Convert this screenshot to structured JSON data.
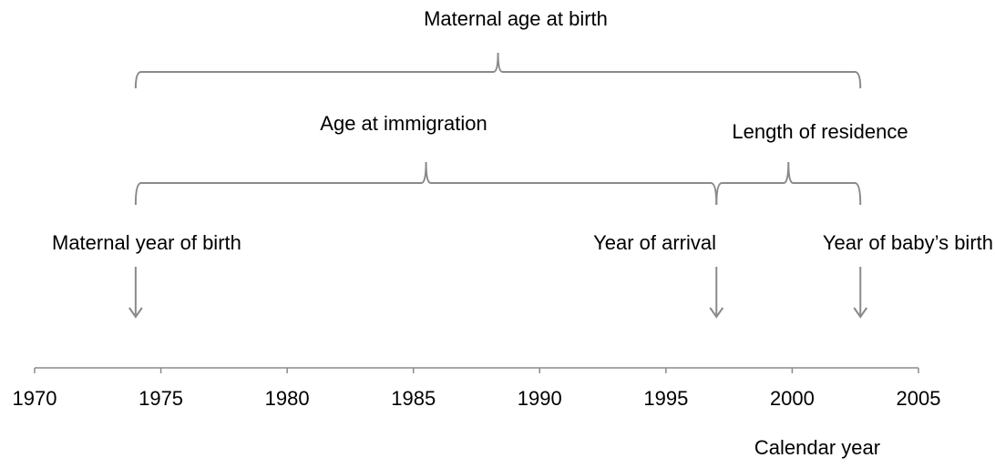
{
  "axis": {
    "label": "Calendar year",
    "xlim": [
      1970,
      2005
    ],
    "xticks": [
      1970,
      1975,
      1980,
      1985,
      1990,
      1995,
      2000,
      2005
    ]
  },
  "events": [
    {
      "label": "Maternal year of birth",
      "year": 1974
    },
    {
      "label": "Year of arrival",
      "year": 1997
    },
    {
      "label": "Year of baby’s birth",
      "year": 2002.7
    }
  ],
  "brackets": [
    {
      "label": "Maternal age at birth",
      "start": 1974,
      "end": 2002.7
    },
    {
      "label": "Age at immigration",
      "start": 1974,
      "end": 1997
    },
    {
      "label": "Length of residence",
      "start": 1997,
      "end": 2002.7
    }
  ]
}
